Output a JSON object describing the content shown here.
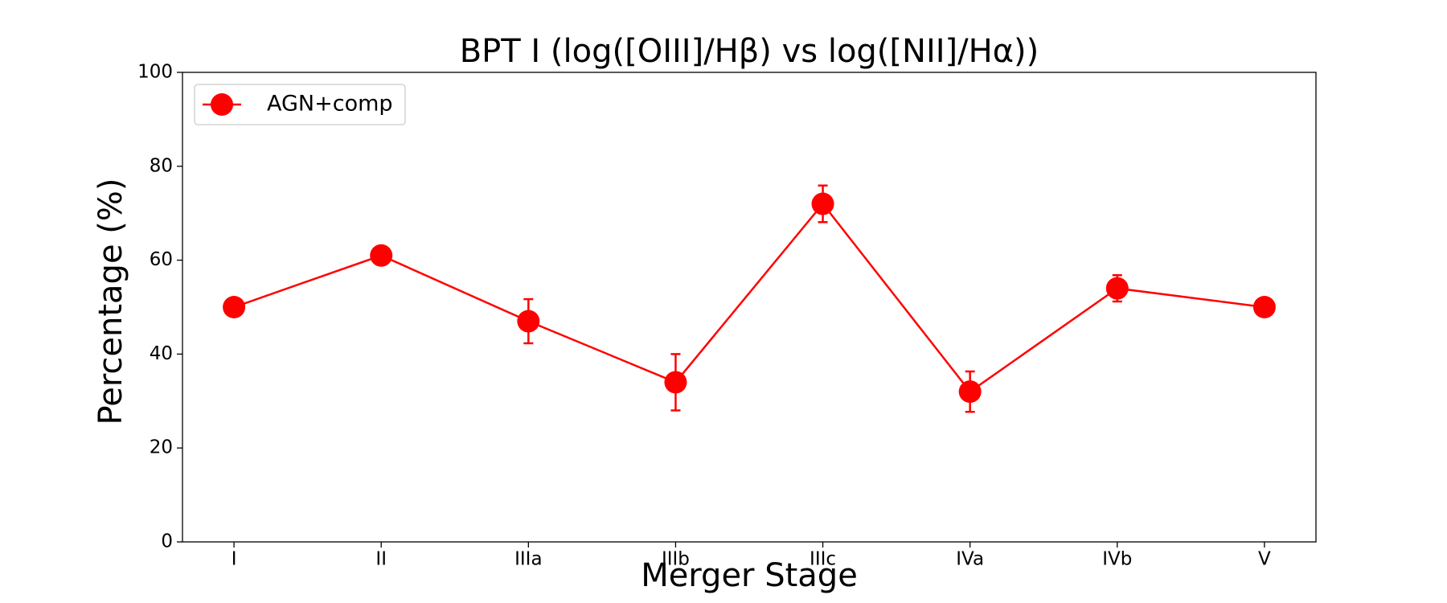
{
  "chart_data": {
    "type": "line",
    "title": "BPT I (log([OIII]/Hβ) vs log([NII]/Hα))",
    "xlabel": "Merger Stage",
    "ylabel": "Percentage (%)",
    "categories": [
      "I",
      "II",
      "IIIa",
      "IIIb",
      "IIIc",
      "IVa",
      "IVb",
      "V"
    ],
    "series": [
      {
        "name": "AGN+comp",
        "color": "#ff0000",
        "values": [
          50,
          61,
          47,
          34,
          72,
          32,
          54,
          50
        ],
        "errors": [
          0,
          0,
          4.7,
          6,
          3.9,
          4.3,
          2.8,
          0
        ]
      }
    ],
    "ylim": [
      0,
      100
    ],
    "yticks": [
      0,
      20,
      40,
      60,
      80,
      100
    ],
    "legend": "upper left",
    "grid": false
  }
}
